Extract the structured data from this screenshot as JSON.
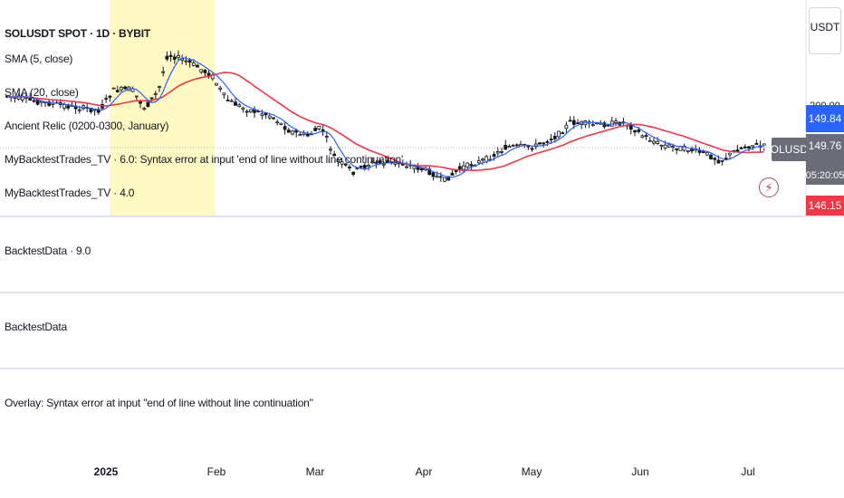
{
  "chart": {
    "title": "SOLUSDT SPOT · 1D · BYBIT",
    "currency": "USDT",
    "symbol_tag": "SOLUSDT",
    "legends": [
      "SMA (5, close)",
      "SMA (20, close)",
      "Ancient Relic (0200-0300, January)",
      "MyBacktestTrades_TV · 6.0: Syntax error at input 'end of line without line continuation'",
      "MyBacktestTrades_TV · 4.0"
    ],
    "price_labels": {
      "top": "200.00",
      "blue": "149.84",
      "gray": "149.76",
      "countdown": "05:20:05",
      "red": "146.15"
    },
    "colors": {
      "sma_fast": "#2962ff",
      "sma_slow": "#f23645",
      "highlight": "#fff9c4",
      "blue_label": "#2962ff",
      "gray_label": "#6a6d78",
      "red_label": "#f23645"
    },
    "lightning_icon": "lightning-icon"
  },
  "panes": [
    {
      "label": "BacktestData · 9.0"
    },
    {
      "label": "BacktestData"
    },
    {
      "label": "Overlay: Syntax error at input \"end of line without line continuation\""
    }
  ],
  "time_axis": {
    "ticks": [
      "2025",
      "Feb",
      "Mar",
      "Apr",
      "May",
      "Jun",
      "Jul"
    ]
  }
}
